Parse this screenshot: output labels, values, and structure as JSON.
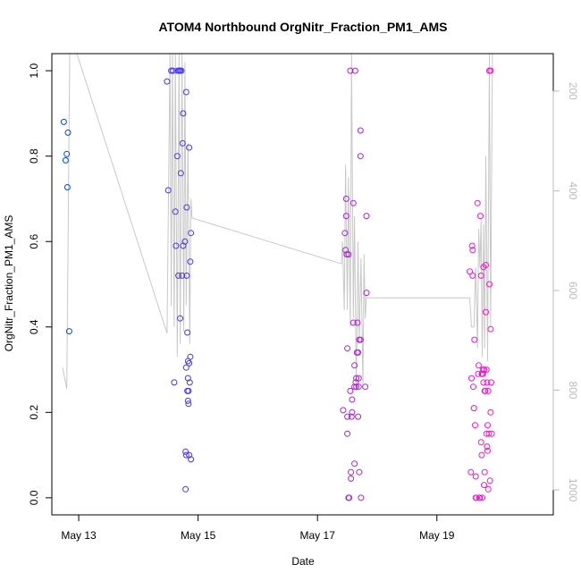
{
  "chart_data": {
    "type": "scatter",
    "title": "ATOM4 Northbound OrgNitr_Fraction_PM1_AMS",
    "xlabel": "Date",
    "ylabel": "OrgNitr_Fraction_PM1_AMS",
    "x_ticks": [
      {
        "day": 13,
        "label": "May 13"
      },
      {
        "day": 15,
        "label": "May 15"
      },
      {
        "day": 17,
        "label": "May 17"
      },
      {
        "day": 19,
        "label": "May 19"
      }
    ],
    "y_ticks": [
      "0.0",
      "0.2",
      "0.4",
      "0.6",
      "0.8",
      "1.0"
    ],
    "y2_ticks": [
      "200",
      "400",
      "600",
      "800",
      "1000"
    ],
    "xlim": [
      12.55,
      20.95
    ],
    "ylim": [
      -0.04,
      1.04
    ],
    "y2lim": [
      1050,
      125
    ],
    "colors": {
      "start": "#0044ff",
      "end": "#ff11cc",
      "line": "#c8c8c8",
      "secondary_axis": "#bbbbbb"
    },
    "points": [
      [
        12.75,
        0.88
      ],
      [
        12.78,
        0.79
      ],
      [
        12.8,
        0.805
      ],
      [
        12.82,
        0.855
      ],
      [
        12.81,
        0.727
      ],
      [
        12.84,
        0.39
      ],
      [
        14.48,
        0.975
      ],
      [
        14.5,
        0.72
      ],
      [
        14.55,
        1.0
      ],
      [
        14.58,
        1.0
      ],
      [
        14.6,
        0.27
      ],
      [
        14.62,
        0.67
      ],
      [
        14.63,
        0.59
      ],
      [
        14.65,
        0.8
      ],
      [
        14.66,
        1.0
      ],
      [
        14.67,
        0.52
      ],
      [
        14.68,
        1.0
      ],
      [
        14.7,
        1.0
      ],
      [
        14.7,
        0.42
      ],
      [
        14.71,
        0.76
      ],
      [
        14.72,
        1.0
      ],
      [
        14.73,
        0.52
      ],
      [
        14.74,
        0.83
      ],
      [
        14.75,
        0.9
      ],
      [
        14.75,
        0.59
      ],
      [
        14.78,
        0.6
      ],
      [
        14.79,
        0.108
      ],
      [
        14.8,
        0.95
      ],
      [
        14.8,
        0.305
      ],
      [
        14.8,
        0.1
      ],
      [
        14.81,
        0.52
      ],
      [
        14.81,
        0.68
      ],
      [
        14.82,
        0.387
      ],
      [
        14.82,
        0.25
      ],
      [
        14.83,
        0.227
      ],
      [
        14.83,
        0.28
      ],
      [
        14.83,
        0.32
      ],
      [
        14.84,
        0.25
      ],
      [
        14.84,
        0.22
      ],
      [
        14.85,
        0.82
      ],
      [
        14.85,
        0.315
      ],
      [
        14.85,
        0.1
      ],
      [
        14.86,
        0.27
      ],
      [
        14.87,
        0.553
      ],
      [
        14.87,
        0.33
      ],
      [
        14.88,
        0.62
      ],
      [
        14.88,
        0.09
      ],
      [
        14.79,
        0.02
      ],
      [
        17.43,
        0.205
      ],
      [
        17.46,
        0.62
      ],
      [
        17.47,
        0.58
      ],
      [
        17.48,
        0.7
      ],
      [
        17.48,
        0.66
      ],
      [
        17.49,
        0.57
      ],
      [
        17.5,
        0.35
      ],
      [
        17.5,
        0.15
      ],
      [
        17.5,
        0.19
      ],
      [
        17.52,
        0.57
      ],
      [
        17.53,
        0.0
      ],
      [
        17.52,
        0.0
      ],
      [
        17.55,
        1.0
      ],
      [
        17.55,
        0.25
      ],
      [
        17.56,
        0.06
      ],
      [
        17.56,
        0.045
      ],
      [
        17.57,
        0.19
      ],
      [
        17.58,
        0.2
      ],
      [
        17.58,
        0.23
      ],
      [
        17.6,
        0.69
      ],
      [
        17.6,
        0.41
      ],
      [
        17.62,
        0.26
      ],
      [
        17.62,
        0.08
      ],
      [
        17.62,
        0.31
      ],
      [
        17.63,
        1.0
      ],
      [
        17.64,
        0.27
      ],
      [
        17.65,
        0.28
      ],
      [
        17.65,
        0.26
      ],
      [
        17.66,
        0.34
      ],
      [
        17.67,
        0.41
      ],
      [
        17.68,
        0.34
      ],
      [
        17.68,
        0.19
      ],
      [
        17.69,
        0.28
      ],
      [
        17.69,
        0.26
      ],
      [
        17.7,
        0.06
      ],
      [
        17.7,
        0.37
      ],
      [
        17.72,
        0.8
      ],
      [
        17.72,
        0.86
      ],
      [
        17.73,
        0.0
      ],
      [
        17.72,
        0.37
      ],
      [
        17.8,
        0.26
      ],
      [
        17.82,
        0.66
      ],
      [
        17.82,
        0.48
      ],
      [
        19.55,
        0.53
      ],
      [
        19.57,
        0.06
      ],
      [
        19.58,
        0.28
      ],
      [
        19.59,
        0.59
      ],
      [
        19.6,
        0.58
      ],
      [
        19.6,
        0.52
      ],
      [
        19.61,
        0.26
      ],
      [
        19.62,
        0.21
      ],
      [
        19.63,
        0.37
      ],
      [
        19.64,
        0.17
      ],
      [
        19.65,
        0.05
      ],
      [
        19.65,
        0.0
      ],
      [
        19.66,
        0.0
      ],
      [
        19.68,
        0.69
      ],
      [
        19.69,
        0.29
      ],
      [
        19.7,
        0.31
      ],
      [
        19.71,
        0.0
      ],
      [
        19.72,
        0.0
      ],
      [
        19.73,
        0.66
      ],
      [
        19.74,
        0.52
      ],
      [
        19.74,
        0.13
      ],
      [
        19.75,
        0.1
      ],
      [
        19.76,
        0.0
      ],
      [
        19.76,
        0.29
      ],
      [
        19.77,
        0.29
      ],
      [
        19.78,
        0.54
      ],
      [
        19.78,
        0.27
      ],
      [
        19.79,
        0.03
      ],
      [
        19.8,
        0.25
      ],
      [
        19.8,
        0.06
      ],
      [
        19.81,
        0.25
      ],
      [
        19.82,
        0.545
      ],
      [
        19.82,
        0.435
      ],
      [
        19.83,
        0.15
      ],
      [
        19.83,
        0.3
      ],
      [
        19.84,
        0.27
      ],
      [
        19.84,
        0.12
      ],
      [
        19.85,
        0.11
      ],
      [
        19.85,
        0.17
      ],
      [
        19.86,
        0.02
      ],
      [
        19.86,
        0.25
      ],
      [
        19.87,
        0.15
      ],
      [
        19.88,
        1.0
      ],
      [
        19.88,
        0.5
      ],
      [
        19.89,
        0.04
      ],
      [
        19.9,
        0.395
      ],
      [
        19.9,
        0.2
      ],
      [
        19.9,
        1.0
      ],
      [
        19.91,
        0.27
      ],
      [
        19.92,
        0.15
      ],
      [
        19.79,
        0.3
      ],
      [
        19.77,
        0.3
      ],
      [
        19.75,
        0.29
      ]
    ],
    "altitude_track": [
      [
        12.73,
        0.305
      ],
      [
        12.8,
        0.255
      ],
      [
        12.85,
        1.04
      ],
      [
        12.97,
        1.04
      ],
      [
        14.48,
        0.385
      ],
      [
        14.53,
        1.04
      ],
      [
        14.55,
        0.45
      ],
      [
        14.57,
        1.04
      ],
      [
        14.6,
        0.4
      ],
      [
        14.62,
        1.04
      ],
      [
        14.65,
        0.33
      ],
      [
        14.68,
        1.04
      ],
      [
        14.7,
        0.36
      ],
      [
        14.73,
        1.04
      ],
      [
        14.76,
        0.39
      ],
      [
        14.78,
        1.02
      ],
      [
        14.8,
        0.45
      ],
      [
        14.83,
        0.83
      ],
      [
        14.86,
        0.36
      ],
      [
        14.88,
        0.7
      ],
      [
        14.9,
        0.655
      ],
      [
        17.4,
        0.548
      ],
      [
        17.42,
        0.6
      ],
      [
        17.45,
        0.44
      ],
      [
        17.47,
        0.78
      ],
      [
        17.5,
        0.44
      ],
      [
        17.52,
        0.75
      ],
      [
        17.55,
        0.4
      ],
      [
        17.57,
        1.04
      ],
      [
        17.6,
        0.42
      ],
      [
        17.62,
        0.66
      ],
      [
        17.65,
        0.26
      ],
      [
        17.68,
        0.6
      ],
      [
        17.7,
        0.36
      ],
      [
        17.73,
        0.56
      ],
      [
        17.76,
        0.26
      ],
      [
        17.78,
        0.57
      ],
      [
        17.8,
        0.42
      ],
      [
        17.82,
        0.47
      ],
      [
        17.84,
        0.468
      ],
      [
        19.55,
        0.468
      ],
      [
        19.58,
        0.4
      ],
      [
        19.62,
        0.4
      ],
      [
        19.65,
        0.54
      ],
      [
        19.68,
        0.35
      ],
      [
        19.7,
        0.63
      ],
      [
        19.72,
        0.54
      ],
      [
        19.74,
        0.65
      ],
      [
        19.76,
        0.33
      ],
      [
        19.78,
        0.64
      ],
      [
        19.8,
        0.35
      ],
      [
        19.82,
        0.8
      ],
      [
        19.85,
        0.32
      ],
      [
        19.88,
        1.04
      ],
      [
        19.9,
        0.4
      ],
      [
        19.93,
        1.04
      ]
    ]
  }
}
